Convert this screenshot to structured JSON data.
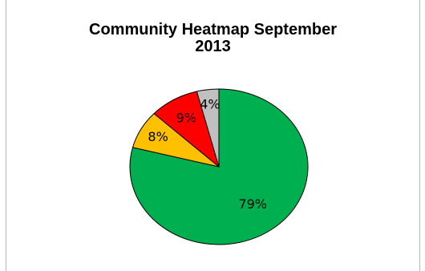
{
  "chart_data": {
    "type": "pie",
    "title_line1": "Community  Heatmap  September",
    "title_line2": "2013",
    "slices": [
      {
        "label": "79%",
        "value": 79,
        "color": "#00b050"
      },
      {
        "label": "8%",
        "value": 8,
        "color": "#ffc000"
      },
      {
        "label": "9%",
        "value": 9,
        "color": "#ff0000"
      },
      {
        "label": "4%",
        "value": 4,
        "color": "#c0c0c0"
      }
    ],
    "start": "12 o'clock",
    "direction": "clockwise"
  }
}
